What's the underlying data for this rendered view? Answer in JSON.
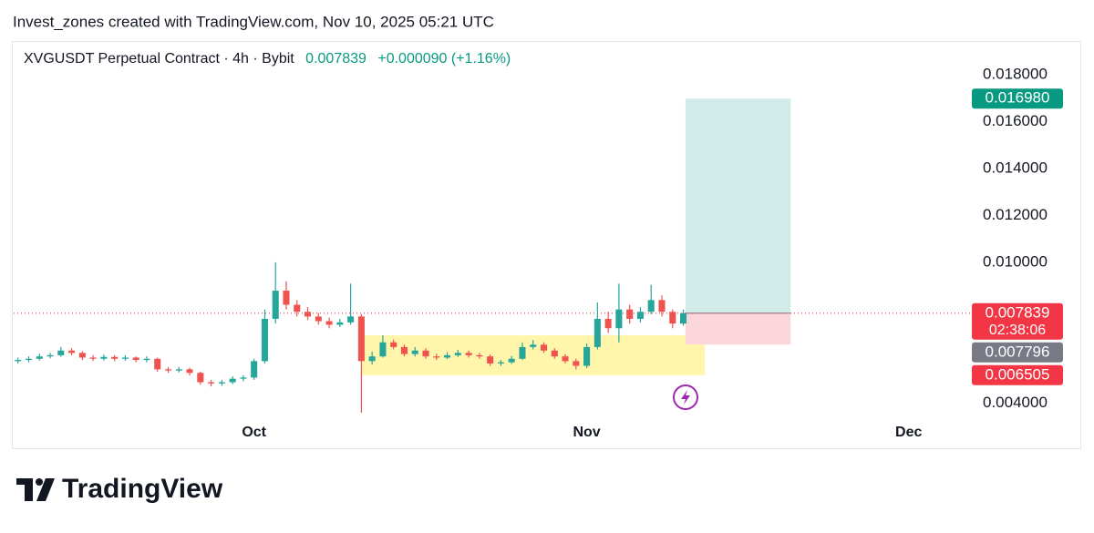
{
  "header": "Invest_zones created with TradingView.com, Nov 10, 2025 05:21 UTC",
  "footer": {
    "brand": "TradingView"
  },
  "chart_data": {
    "type": "candlestick",
    "legend": {
      "title": "XVGUSDT Perpetual Contract · 4h · Bybit",
      "price": "0.007839",
      "change": "+0.000090 (+1.16%)"
    },
    "up_color": "#26a69a",
    "down_color": "#ef5350",
    "xlim": [
      -22.4,
      66.8
    ],
    "xticks": [
      {
        "value": 0,
        "label": "Oct"
      },
      {
        "value": 31,
        "label": "Nov"
      },
      {
        "value": 61,
        "label": "Dec"
      }
    ],
    "ylim": [
      0.00333,
      0.01924
    ],
    "yticks": [
      {
        "value": 0.004,
        "label": "0.004000"
      },
      {
        "value": 0.01,
        "label": "0.010000"
      },
      {
        "value": 0.012,
        "label": "0.012000"
      },
      {
        "value": 0.014,
        "label": "0.014000"
      },
      {
        "value": 0.016,
        "label": "0.016000"
      },
      {
        "value": 0.018,
        "label": "0.018000"
      }
    ],
    "x": [
      -22,
      -21,
      -20,
      -19,
      -18,
      -17,
      -16,
      -15,
      -14,
      -13,
      -12,
      -11,
      -10,
      -9,
      -8,
      -7,
      -6,
      -5,
      -4,
      -3,
      -2,
      -1,
      0,
      1,
      2,
      3,
      4,
      5,
      6,
      7,
      8,
      9,
      10,
      11,
      12,
      13,
      14,
      15,
      16,
      17,
      18,
      19,
      20,
      21,
      22,
      23,
      24,
      25,
      26,
      27,
      28,
      29,
      30,
      31,
      32,
      33,
      34,
      35,
      36,
      37,
      38,
      39,
      40
    ],
    "open": [
      0.0058,
      0.00585,
      0.0059,
      0.006,
      0.00605,
      0.00625,
      0.00615,
      0.00595,
      0.0059,
      0.00598,
      0.0059,
      0.00595,
      0.00585,
      0.0059,
      0.00545,
      0.0054,
      0.00545,
      0.0053,
      0.0049,
      0.00485,
      0.0049,
      0.00505,
      0.0051,
      0.0058,
      0.0076,
      0.0088,
      0.0082,
      0.0079,
      0.0077,
      0.0075,
      0.00735,
      0.00745,
      0.0077,
      0.0058,
      0.006,
      0.0066,
      0.0064,
      0.0061,
      0.00625,
      0.006,
      0.00595,
      0.00605,
      0.00615,
      0.00605,
      0.006,
      0.0057,
      0.00575,
      0.0059,
      0.0064,
      0.0065,
      0.00625,
      0.006,
      0.0058,
      0.0056,
      0.0064,
      0.0076,
      0.0072,
      0.008,
      0.0076,
      0.0079,
      0.0084,
      0.0079,
      0.0074
    ],
    "high": [
      0.00595,
      0.006,
      0.00612,
      0.00615,
      0.0064,
      0.00635,
      0.00622,
      0.00605,
      0.00608,
      0.00605,
      0.00605,
      0.006,
      0.006,
      0.00595,
      0.00555,
      0.00555,
      0.00552,
      0.00535,
      0.005,
      0.005,
      0.00515,
      0.0052,
      0.0059,
      0.008,
      0.01001,
      0.0092,
      0.0084,
      0.0081,
      0.00785,
      0.00765,
      0.0076,
      0.0091,
      0.0078,
      0.0062,
      0.0069,
      0.00672,
      0.0065,
      0.0064,
      0.00635,
      0.00612,
      0.00618,
      0.00628,
      0.00625,
      0.00615,
      0.00608,
      0.00585,
      0.00602,
      0.0066,
      0.0067,
      0.0066,
      0.00635,
      0.0061,
      0.0059,
      0.00655,
      0.0083,
      0.0079,
      0.0091,
      0.0082,
      0.0081,
      0.00905,
      0.0086,
      0.008,
      0.008
    ],
    "low": [
      0.0057,
      0.00575,
      0.00582,
      0.00592,
      0.00598,
      0.00605,
      0.00585,
      0.0058,
      0.00582,
      0.0058,
      0.00582,
      0.00575,
      0.00575,
      0.00535,
      0.0053,
      0.00532,
      0.0052,
      0.0048,
      0.00472,
      0.00475,
      0.00482,
      0.00495,
      0.005,
      0.0057,
      0.0074,
      0.008,
      0.0077,
      0.00755,
      0.00735,
      0.0072,
      0.00725,
      0.00735,
      0.0036,
      0.00565,
      0.00595,
      0.0063,
      0.006,
      0.006,
      0.0059,
      0.00585,
      0.00588,
      0.00598,
      0.00595,
      0.0059,
      0.0056,
      0.0056,
      0.00568,
      0.00585,
      0.0063,
      0.00615,
      0.0059,
      0.0057,
      0.00545,
      0.0055,
      0.0063,
      0.007,
      0.0066,
      0.0074,
      0.00745,
      0.0078,
      0.0077,
      0.0072,
      0.0073
    ],
    "close": [
      0.00585,
      0.0059,
      0.006,
      0.00605,
      0.00625,
      0.00615,
      0.00595,
      0.0059,
      0.00598,
      0.0059,
      0.00595,
      0.00585,
      0.0059,
      0.00545,
      0.0054,
      0.00545,
      0.0053,
      0.0049,
      0.00485,
      0.0049,
      0.00505,
      0.0051,
      0.0058,
      0.0076,
      0.0088,
      0.0082,
      0.0079,
      0.0077,
      0.0075,
      0.00735,
      0.00745,
      0.0077,
      0.0058,
      0.006,
      0.0066,
      0.0064,
      0.0061,
      0.00625,
      0.006,
      0.00595,
      0.00605,
      0.00615,
      0.00605,
      0.006,
      0.0057,
      0.00575,
      0.0059,
      0.0064,
      0.0065,
      0.00625,
      0.006,
      0.0058,
      0.0056,
      0.0064,
      0.0076,
      0.0072,
      0.008,
      0.0076,
      0.0079,
      0.0084,
      0.0079,
      0.0074,
      0.007839
    ],
    "zone": {
      "top": 0.0069,
      "bottom": 0.0052,
      "x_start": 10,
      "x_end": 42,
      "color": "#fff59d"
    },
    "position": {
      "entry": 0.007839,
      "target": 0.01698,
      "stop": 0.006505,
      "x_start": 40.2,
      "x_end": 50,
      "profit_color": "#d1ece8",
      "loss_color": "#fbd7dc"
    },
    "price_line": {
      "value": 0.007839,
      "color": "#f23645"
    },
    "price_labels": [
      {
        "value": 0.01698,
        "label": "0.016980",
        "color": "#089981"
      },
      {
        "value": 0.007839,
        "label": "0.007839",
        "countdown": "02:38:06",
        "color": "#f23645"
      },
      {
        "value": 0.007796,
        "label": "0.007796",
        "color": "#787b86"
      },
      {
        "value": 0.006505,
        "label": "0.006505",
        "color": "#f23645"
      }
    ]
  }
}
